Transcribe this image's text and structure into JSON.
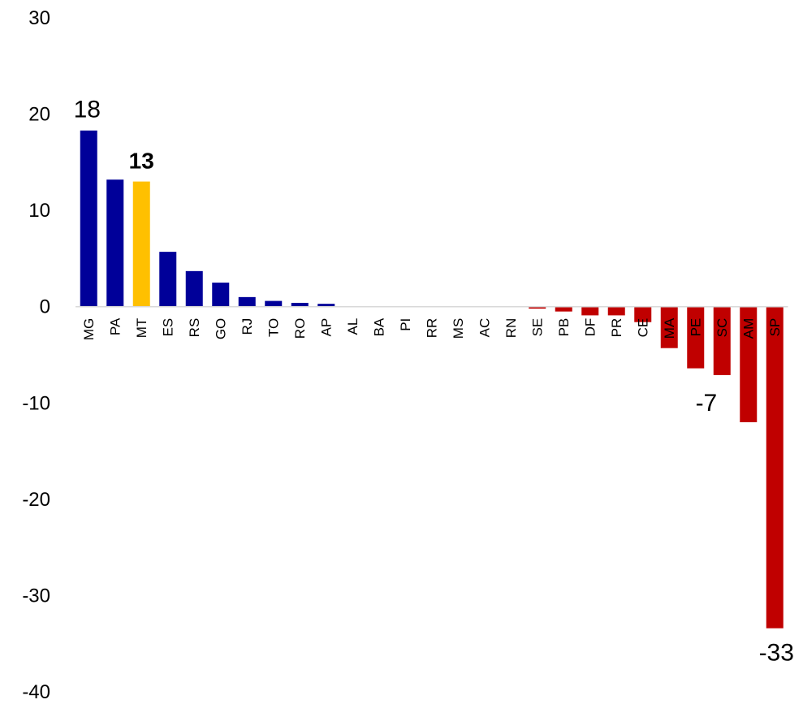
{
  "chart_data": {
    "type": "bar",
    "categories": [
      "MG",
      "PA",
      "MT",
      "ES",
      "RS",
      "GO",
      "RJ",
      "TO",
      "RO",
      "AP",
      "AL",
      "BA",
      "PI",
      "RR",
      "MS",
      "AC",
      "RN",
      "SE",
      "PB",
      "DF",
      "PR",
      "CE",
      "MA",
      "PE",
      "SC",
      "AM",
      "SP"
    ],
    "values": [
      18.3,
      13.2,
      13.0,
      5.7,
      3.7,
      2.5,
      1.0,
      0.6,
      0.4,
      0.3,
      0.05,
      0.0,
      0.0,
      0.0,
      0.0,
      0.0,
      0.0,
      -0.2,
      -0.5,
      -0.9,
      -0.9,
      -1.6,
      -4.3,
      -6.4,
      -7.1,
      -12.0,
      -33.4
    ],
    "ylim": [
      -40,
      30
    ],
    "yticks": [
      30,
      20,
      10,
      0,
      -10,
      -20,
      -30,
      -40
    ],
    "title": "",
    "xlabel": "",
    "ylabel": "",
    "grid": false,
    "legend": "none",
    "colors": {
      "positive": "#000099",
      "highlight": "#FFC000",
      "negative": "#C00000",
      "axis": "#D9D9D9"
    },
    "highlight_category": "MT",
    "data_labels": [
      {
        "category": "MG",
        "text": "18"
      },
      {
        "category": "MT",
        "text": "13",
        "bold": true
      },
      {
        "category": "SC",
        "text": "-7"
      },
      {
        "category": "SP",
        "text": "-33"
      }
    ]
  }
}
